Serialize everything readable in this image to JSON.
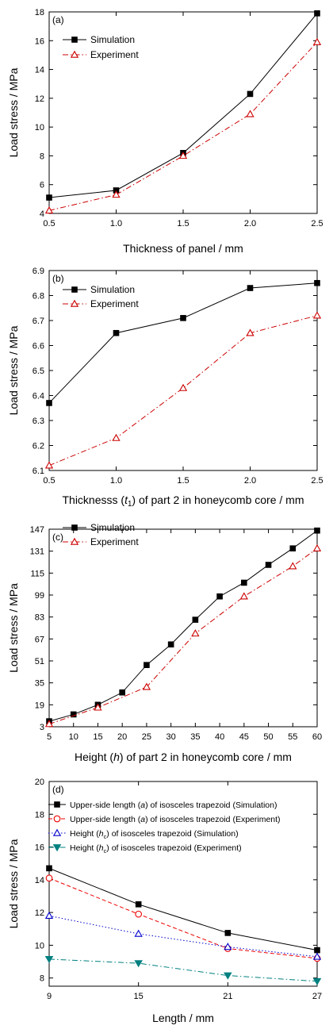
{
  "chart_data": [
    {
      "type": "line",
      "panel_label": "(a)",
      "xlabel": "Thickness of panel / mm",
      "ylabel": "Load stress / MPa",
      "xlim": [
        0.5,
        2.5
      ],
      "ylim": [
        4,
        18
      ],
      "x_ticks": [
        "0.5",
        "1.0",
        "1.5",
        "2.0",
        "2.5"
      ],
      "y_ticks": [
        "4",
        "6",
        "8",
        "10",
        "12",
        "14",
        "16",
        "18"
      ],
      "legend_position": "top-left",
      "series": [
        {
          "name": "Simulation",
          "color": "#000000",
          "marker": "square",
          "line": "solid",
          "x": [
            0.5,
            1.0,
            1.5,
            2.0,
            2.5
          ],
          "values": [
            5.1,
            5.6,
            8.2,
            12.3,
            17.9
          ]
        },
        {
          "name": "Experiment",
          "color": "#cc0000",
          "marker": "triangle-open",
          "line": "dashdot",
          "x": [
            0.5,
            1.0,
            1.5,
            2.0,
            2.5
          ],
          "values": [
            4.2,
            5.3,
            8.0,
            10.9,
            15.9
          ]
        }
      ]
    },
    {
      "type": "line",
      "panel_label": "(b)",
      "xlabel_parts": [
        "Thicknesss (",
        "t",
        "1",
        ") of part 2 in honeycomb core / mm"
      ],
      "ylabel": "Load stress / MPa",
      "xlim": [
        0.5,
        2.5
      ],
      "ylim": [
        6.1,
        6.9
      ],
      "x_ticks": [
        "0.5",
        "1.0",
        "1.5",
        "2.0",
        "2.5"
      ],
      "y_ticks": [
        "6.1",
        "6.2",
        "6.3",
        "6.4",
        "6.5",
        "6.6",
        "6.7",
        "6.8",
        "6.9"
      ],
      "legend_position": "top-left",
      "series": [
        {
          "name": "Simulation",
          "color": "#000000",
          "marker": "square",
          "line": "solid",
          "x": [
            0.5,
            1.0,
            1.5,
            2.0,
            2.5
          ],
          "values": [
            6.37,
            6.65,
            6.71,
            6.83,
            6.85
          ]
        },
        {
          "name": "Experiment",
          "color": "#cc0000",
          "marker": "triangle-open",
          "line": "dashdot",
          "x": [
            0.5,
            1.0,
            1.5,
            2.0,
            2.5
          ],
          "values": [
            6.12,
            6.23,
            6.43,
            6.65,
            6.72
          ]
        }
      ]
    },
    {
      "type": "line",
      "panel_label": "(c)",
      "xlabel_parts": [
        "Height (",
        "h",
        ") of part 2 in honeycomb core / mm"
      ],
      "ylabel": "Load stress / MPa",
      "xlim": [
        5,
        60
      ],
      "ylim": [
        3,
        147
      ],
      "x_ticks": [
        "5",
        "10",
        "15",
        "20",
        "25",
        "30",
        "35",
        "40",
        "45",
        "50",
        "55",
        "60"
      ],
      "y_ticks": [
        "3",
        "19",
        "35",
        "51",
        "67",
        "83",
        "99",
        "115",
        "131",
        "147"
      ],
      "legend_position": "top-left",
      "series": [
        {
          "name": "Simulation",
          "color": "#000000",
          "marker": "square",
          "line": "solid",
          "x": [
            5,
            10,
            15,
            20,
            25,
            30,
            35,
            40,
            45,
            50,
            55,
            60
          ],
          "values": [
            7,
            12,
            19,
            28,
            48,
            63,
            81,
            98,
            108,
            121,
            133,
            146
          ]
        },
        {
          "name": "Experiment",
          "color": "#cc0000",
          "marker": "triangle-open",
          "line": "dashdot",
          "x": [
            5,
            15,
            25,
            35,
            45,
            55,
            60
          ],
          "values": [
            5,
            17,
            32,
            71,
            98,
            120,
            133
          ]
        }
      ]
    },
    {
      "type": "line",
      "panel_label": "(d)",
      "xlabel": "Length / mm",
      "ylabel": "Load stress / MPa",
      "xlim": [
        9,
        27
      ],
      "ylim": [
        7.5,
        20
      ],
      "x_ticks": [
        "9",
        "15",
        "21",
        "27"
      ],
      "y_ticks": [
        "8",
        "10",
        "12",
        "14",
        "16",
        "18",
        "20"
      ],
      "legend_position": "top-left",
      "series": [
        {
          "name_parts": [
            "Upper-side length (",
            "a",
            ") of isosceles trapezoid (Simulation)"
          ],
          "color": "#000000",
          "marker": "square",
          "line": "solid",
          "x": [
            9,
            15,
            21,
            27
          ],
          "values": [
            14.7,
            12.5,
            10.75,
            9.7
          ]
        },
        {
          "name_parts": [
            "Upper-side length (",
            "a",
            ") of isosceles trapezoid (Experiment)"
          ],
          "color": "#ee0000",
          "marker": "circle-open",
          "line": "dashed",
          "x": [
            9,
            15,
            21,
            27
          ],
          "values": [
            14.1,
            11.9,
            9.8,
            9.2
          ]
        },
        {
          "name_parts": [
            "Height (",
            "h",
            "c",
            ") of isosceles trapezoid (Simulation)"
          ],
          "color": "#0000cc",
          "marker": "triangle-open",
          "line": "dotted",
          "x": [
            9,
            15,
            21,
            27
          ],
          "values": [
            11.8,
            10.7,
            9.9,
            9.3
          ]
        },
        {
          "name_parts": [
            "Height (",
            "h",
            "c",
            ") of isosceles trapezoid (Experiment)"
          ],
          "color": "#008080",
          "marker": "triangle-down-filled",
          "line": "dashdot",
          "x": [
            9,
            15,
            21,
            27
          ],
          "values": [
            9.15,
            8.9,
            8.15,
            7.8
          ]
        }
      ]
    }
  ]
}
